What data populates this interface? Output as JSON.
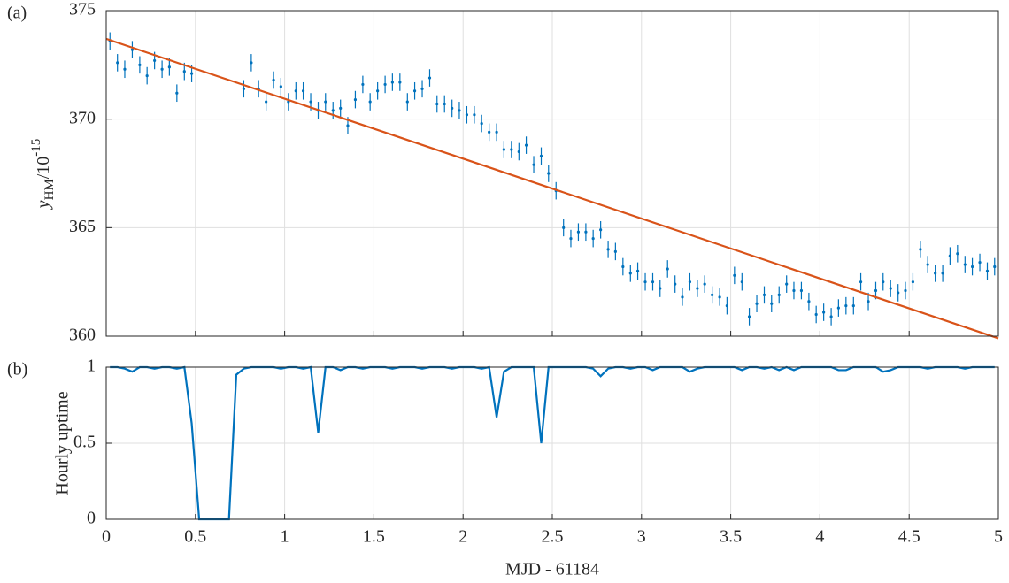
{
  "chart_data": [
    {
      "type": "scatter",
      "annotation": "(a)",
      "ylabel": {
        "text": "y",
        "subscript": "HM",
        "suffix": "/10",
        "superscript": "-15"
      },
      "x": [
        0.021,
        0.063,
        0.104,
        0.146,
        0.188,
        0.229,
        0.271,
        0.313,
        0.354,
        0.396,
        0.438,
        0.479,
        0.521,
        0.563,
        0.604,
        0.646,
        0.688,
        0.729,
        0.771,
        0.813,
        0.854,
        0.896,
        0.938,
        0.979,
        1.021,
        1.063,
        1.104,
        1.146,
        1.188,
        1.229,
        1.271,
        1.313,
        1.354,
        1.396,
        1.438,
        1.479,
        1.521,
        1.563,
        1.604,
        1.646,
        1.688,
        1.729,
        1.771,
        1.813,
        1.854,
        1.896,
        1.938,
        1.979,
        2.021,
        2.063,
        2.104,
        2.146,
        2.188,
        2.229,
        2.271,
        2.313,
        2.354,
        2.396,
        2.438,
        2.479,
        2.521,
        2.563,
        2.604,
        2.646,
        2.688,
        2.729,
        2.771,
        2.813,
        2.854,
        2.896,
        2.938,
        2.979,
        3.021,
        3.063,
        3.104,
        3.146,
        3.188,
        3.229,
        3.271,
        3.313,
        3.354,
        3.396,
        3.438,
        3.479,
        3.521,
        3.563,
        3.604,
        3.646,
        3.688,
        3.729,
        3.771,
        3.813,
        3.854,
        3.896,
        3.938,
        3.979,
        4.021,
        4.063,
        4.104,
        4.146,
        4.188,
        4.229,
        4.271,
        4.313,
        4.354,
        4.396,
        4.438,
        4.479,
        4.521,
        4.563,
        4.604,
        4.646,
        4.688,
        4.729,
        4.771,
        4.813,
        4.854,
        4.896,
        4.938,
        4.979
      ],
      "series": [
        {
          "style": "errorbar",
          "color": "#0072bd",
          "error": 0.4,
          "values": [
            373.6,
            372.6,
            372.3,
            373.2,
            372.5,
            372.0,
            372.7,
            372.3,
            372.4,
            371.2,
            372.2,
            372.1,
            null,
            null,
            null,
            null,
            null,
            null,
            371.4,
            372.6,
            371.4,
            370.8,
            371.8,
            371.5,
            370.8,
            371.3,
            371.3,
            370.8,
            370.4,
            370.8,
            370.4,
            370.5,
            369.7,
            370.9,
            371.6,
            370.8,
            371.3,
            371.6,
            371.7,
            371.7,
            370.8,
            371.3,
            371.4,
            371.9,
            370.7,
            370.7,
            370.5,
            370.4,
            370.2,
            370.2,
            369.8,
            369.4,
            369.4,
            368.6,
            368.6,
            368.5,
            368.8,
            367.9,
            368.3,
            367.5,
            366.7,
            365.0,
            364.5,
            364.8,
            364.8,
            364.5,
            364.9,
            364.0,
            363.9,
            363.2,
            362.9,
            363.0,
            362.5,
            362.5,
            362.2,
            363.1,
            362.4,
            361.8,
            362.5,
            362.2,
            362.4,
            361.9,
            361.8,
            361.4,
            362.8,
            362.5,
            360.9,
            361.5,
            361.9,
            361.5,
            361.9,
            362.4,
            362.1,
            362.1,
            361.6,
            361.0,
            361.1,
            360.9,
            361.3,
            361.4,
            361.4,
            362.5,
            361.6,
            362.1,
            362.5,
            362.2,
            362.0,
            362.1,
            362.5,
            364.0,
            363.3,
            362.9,
            362.9,
            363.7,
            363.8,
            363.3,
            363.2,
            363.4,
            363.0,
            363.2
          ]
        },
        {
          "style": "line",
          "color": "#d95319",
          "x": [
            0,
            5
          ],
          "values": [
            373.7,
            359.9
          ]
        }
      ],
      "xlim": [
        0,
        5
      ],
      "xticks": [
        0,
        0.5,
        1,
        1.5,
        2,
        2.5,
        3,
        3.5,
        4,
        4.5,
        5
      ],
      "ylim": [
        360,
        375
      ],
      "yticks": [
        360,
        365,
        370,
        375
      ],
      "grid": true,
      "xticklabels": false
    },
    {
      "type": "line",
      "annotation": "(b)",
      "ylabel": "Hourly uptime",
      "xlabel": "MJD - 61184",
      "x": [
        0.021,
        0.063,
        0.104,
        0.146,
        0.188,
        0.229,
        0.271,
        0.313,
        0.354,
        0.396,
        0.438,
        0.479,
        0.521,
        0.563,
        0.604,
        0.646,
        0.688,
        0.729,
        0.771,
        0.813,
        0.854,
        0.896,
        0.938,
        0.979,
        1.021,
        1.063,
        1.104,
        1.146,
        1.188,
        1.229,
        1.271,
        1.313,
        1.354,
        1.396,
        1.438,
        1.479,
        1.521,
        1.563,
        1.604,
        1.646,
        1.688,
        1.729,
        1.771,
        1.813,
        1.854,
        1.896,
        1.938,
        1.979,
        2.021,
        2.063,
        2.104,
        2.146,
        2.188,
        2.229,
        2.271,
        2.313,
        2.354,
        2.396,
        2.438,
        2.479,
        2.521,
        2.563,
        2.604,
        2.646,
        2.688,
        2.729,
        2.771,
        2.813,
        2.854,
        2.896,
        2.938,
        2.979,
        3.021,
        3.063,
        3.104,
        3.146,
        3.188,
        3.229,
        3.271,
        3.313,
        3.354,
        3.396,
        3.438,
        3.479,
        3.521,
        3.563,
        3.604,
        3.646,
        3.688,
        3.729,
        3.771,
        3.813,
        3.854,
        3.896,
        3.938,
        3.979,
        4.021,
        4.063,
        4.104,
        4.146,
        4.188,
        4.229,
        4.271,
        4.313,
        4.354,
        4.396,
        4.438,
        4.479,
        4.521,
        4.563,
        4.604,
        4.646,
        4.688,
        4.729,
        4.771,
        4.813,
        4.854,
        4.896,
        4.938,
        4.979
      ],
      "series": [
        {
          "style": "line",
          "color": "#0072bd",
          "values": [
            1,
            1,
            0.99,
            0.97,
            1,
            1,
            0.99,
            1,
            1,
            0.99,
            1,
            0.63,
            0,
            0,
            0,
            0,
            0,
            0.95,
            0.99,
            1,
            1,
            1,
            1,
            0.99,
            1,
            1,
            0.99,
            1,
            0.57,
            1,
            1,
            0.98,
            1,
            1,
            0.99,
            1,
            1,
            1,
            0.99,
            1,
            1,
            1,
            0.99,
            1,
            1,
            1,
            0.99,
            1,
            1,
            1,
            0.99,
            1,
            0.67,
            0.97,
            1,
            1,
            1,
            1,
            0.5,
            1,
            1,
            1,
            1,
            1,
            1,
            0.99,
            0.94,
            0.99,
            1,
            1,
            0.99,
            1,
            1,
            0.98,
            1,
            1,
            1,
            1,
            0.97,
            0.99,
            1,
            1,
            1,
            1,
            1,
            0.98,
            1,
            1,
            0.99,
            1,
            0.98,
            1,
            0.98,
            1,
            1,
            1,
            1,
            1,
            0.98,
            0.98,
            1,
            1,
            1,
            1,
            0.97,
            0.98,
            1,
            1,
            1,
            1,
            0.99,
            1,
            1,
            1,
            1,
            0.99,
            1,
            1,
            1,
            1
          ]
        }
      ],
      "xlim": [
        0,
        5
      ],
      "xticks": [
        0,
        0.5,
        1,
        1.5,
        2,
        2.5,
        3,
        3.5,
        4,
        4.5,
        5
      ],
      "ylim": [
        0,
        1
      ],
      "yticks": [
        0,
        0.5,
        1
      ],
      "grid": true,
      "xticklabels": true
    }
  ]
}
